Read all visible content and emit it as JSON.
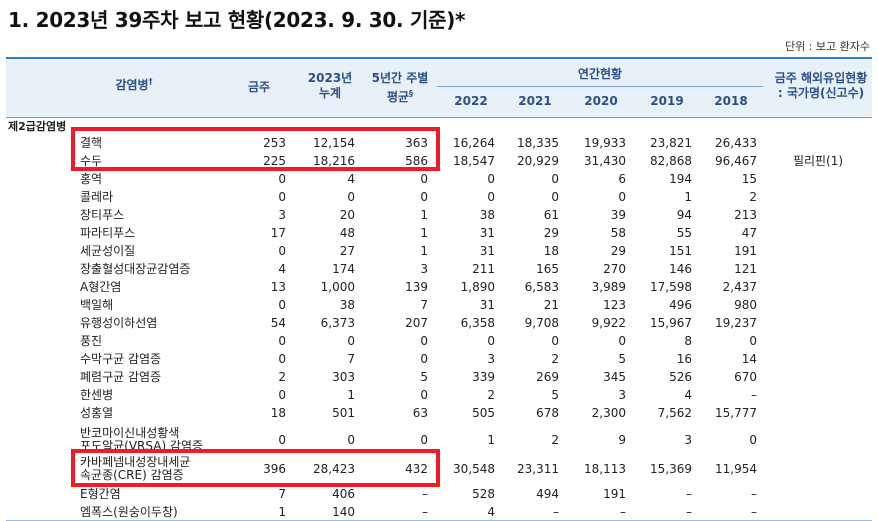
{
  "title": "1. 2023년 39주차 보고 현황(2023. 9. 30. 기준)*",
  "unit": "단위 : 보고 환자수",
  "headers": {
    "disease": "감염병",
    "disease_mark": "†",
    "this_week": "금주",
    "cumulative_l1": "2023년",
    "cumulative_l2": "누계",
    "avg_l1": "5년간 주별",
    "avg_l2": "평균",
    "avg_mark": "§",
    "annual": "연간현황",
    "years": [
      "2022",
      "2021",
      "2020",
      "2019",
      "2018"
    ],
    "overseas_l1": "금주 해외유입현황",
    "overseas_l2": ": 국가명(신고수)"
  },
  "category": "제2급감염병",
  "rows": [
    {
      "name": "결핵",
      "week": "253",
      "cum": "12,154",
      "avg": "363",
      "y2022": "16,264",
      "y2021": "18,335",
      "y2020": "19,933",
      "y2019": "23,821",
      "y2018": "26,433",
      "overseas": ""
    },
    {
      "name": "수두",
      "week": "225",
      "cum": "18,216",
      "avg": "586",
      "y2022": "18,547",
      "y2021": "20,929",
      "y2020": "31,430",
      "y2019": "82,868",
      "y2018": "96,467",
      "overseas": "필리핀(1)"
    },
    {
      "name": "홍역",
      "week": "0",
      "cum": "4",
      "avg": "0",
      "y2022": "0",
      "y2021": "0",
      "y2020": "6",
      "y2019": "194",
      "y2018": "15",
      "overseas": ""
    },
    {
      "name": "콜레라",
      "week": "0",
      "cum": "0",
      "avg": "0",
      "y2022": "0",
      "y2021": "0",
      "y2020": "0",
      "y2019": "1",
      "y2018": "2",
      "overseas": ""
    },
    {
      "name": "장티푸스",
      "week": "3",
      "cum": "20",
      "avg": "1",
      "y2022": "38",
      "y2021": "61",
      "y2020": "39",
      "y2019": "94",
      "y2018": "213",
      "overseas": ""
    },
    {
      "name": "파라티푸스",
      "week": "17",
      "cum": "48",
      "avg": "1",
      "y2022": "31",
      "y2021": "29",
      "y2020": "58",
      "y2019": "55",
      "y2018": "47",
      "overseas": ""
    },
    {
      "name": "세균성이질",
      "week": "0",
      "cum": "27",
      "avg": "1",
      "y2022": "31",
      "y2021": "18",
      "y2020": "29",
      "y2019": "151",
      "y2018": "191",
      "overseas": ""
    },
    {
      "name": "장출혈성대장균감염증",
      "week": "4",
      "cum": "174",
      "avg": "3",
      "y2022": "211",
      "y2021": "165",
      "y2020": "270",
      "y2019": "146",
      "y2018": "121",
      "overseas": ""
    },
    {
      "name": "A형간염",
      "week": "13",
      "cum": "1,000",
      "avg": "139",
      "y2022": "1,890",
      "y2021": "6,583",
      "y2020": "3,989",
      "y2019": "17,598",
      "y2018": "2,437",
      "overseas": ""
    },
    {
      "name": "백일해",
      "week": "0",
      "cum": "38",
      "avg": "7",
      "y2022": "31",
      "y2021": "21",
      "y2020": "123",
      "y2019": "496",
      "y2018": "980",
      "overseas": ""
    },
    {
      "name": "유행성이하선염",
      "week": "54",
      "cum": "6,373",
      "avg": "207",
      "y2022": "6,358",
      "y2021": "9,708",
      "y2020": "9,922",
      "y2019": "15,967",
      "y2018": "19,237",
      "overseas": ""
    },
    {
      "name": "풍진",
      "week": "0",
      "cum": "0",
      "avg": "0",
      "y2022": "0",
      "y2021": "0",
      "y2020": "0",
      "y2019": "8",
      "y2018": "0",
      "overseas": ""
    },
    {
      "name": "수막구균 감염증",
      "week": "0",
      "cum": "7",
      "avg": "0",
      "y2022": "3",
      "y2021": "2",
      "y2020": "5",
      "y2019": "16",
      "y2018": "14",
      "overseas": ""
    },
    {
      "name": "폐렴구균 감염증",
      "week": "2",
      "cum": "303",
      "avg": "5",
      "y2022": "339",
      "y2021": "269",
      "y2020": "345",
      "y2019": "526",
      "y2018": "670",
      "overseas": ""
    },
    {
      "name": "한센병",
      "week": "0",
      "cum": "1",
      "avg": "0",
      "y2022": "2",
      "y2021": "5",
      "y2020": "3",
      "y2019": "4",
      "y2018": "–",
      "overseas": ""
    },
    {
      "name": "성홍열",
      "week": "18",
      "cum": "501",
      "avg": "63",
      "y2022": "505",
      "y2021": "678",
      "y2020": "2,300",
      "y2019": "7,562",
      "y2018": "15,777",
      "overseas": ""
    },
    {
      "name": "반코마이신내성황색 포도알균(VRSA) 감염증",
      "name_l1": "반코마이신내성황색",
      "name_l2": "포도알균(VRSA) 감염증",
      "week": "0",
      "cum": "0",
      "avg": "0",
      "y2022": "1",
      "y2021": "2",
      "y2020": "9",
      "y2019": "3",
      "y2018": "0",
      "overseas": ""
    },
    {
      "name": "카바페넴내성장내세균속균종(CRE) 감염증",
      "name_l1": "카바페넴내성장내세균",
      "name_l2": "속균종(CRE) 감염증",
      "week": "396",
      "cum": "28,423",
      "avg": "432",
      "y2022": "30,548",
      "y2021": "23,311",
      "y2020": "18,113",
      "y2019": "15,369",
      "y2018": "11,954",
      "overseas": ""
    },
    {
      "name": "E형간염",
      "week": "7",
      "cum": "406",
      "avg": "–",
      "y2022": "528",
      "y2021": "494",
      "y2020": "191",
      "y2019": "–",
      "y2018": "–",
      "overseas": ""
    },
    {
      "name": "엠폭스(원숭이두창)",
      "week": "1",
      "cum": "140",
      "avg": "–",
      "y2022": "4",
      "y2021": "–",
      "y2020": "–",
      "y2019": "–",
      "y2018": "–",
      "overseas": ""
    }
  ]
}
